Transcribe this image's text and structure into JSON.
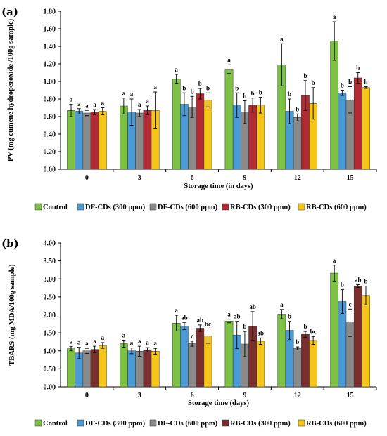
{
  "chart_data": [
    {
      "panel": "(a)",
      "type": "bar",
      "xlabel": "Storage time (in days)",
      "ylabel": "PV (mg cumene hydroperoxide /100g sample)",
      "ylim": [
        0,
        1.8
      ],
      "yticks": [
        "0.00",
        "0.20",
        "0.40",
        "0.60",
        "0.80",
        "1.00",
        "1.20",
        "1.40",
        "1.60",
        "1.80"
      ],
      "categories": [
        "0",
        "3",
        "6",
        "9",
        "12",
        "15"
      ],
      "legend_placement": "bottom",
      "series": [
        {
          "name": "Control",
          "color": "#7dc243",
          "values": [
            0.67,
            0.72,
            1.03,
            1.14,
            1.19,
            1.46
          ],
          "errors": [
            0.07,
            0.09,
            0.05,
            0.05,
            0.24,
            0.22
          ],
          "letters": [
            "a",
            "a",
            "a",
            "a",
            "a",
            "a"
          ]
        },
        {
          "name": "DF-CDs (300 ppm)",
          "color": "#4a9ad6",
          "values": [
            0.66,
            0.65,
            0.74,
            0.73,
            0.66,
            0.87
          ],
          "errors": [
            0.03,
            0.15,
            0.13,
            0.14,
            0.14,
            0.03
          ],
          "letters": [
            "a",
            "a",
            "b",
            "b",
            "b",
            "b"
          ]
        },
        {
          "name": "DF-CDs (600 ppm)",
          "color": "#8a8a8a",
          "values": [
            0.64,
            0.64,
            0.71,
            0.65,
            0.59,
            0.79
          ],
          "errors": [
            0.03,
            0.04,
            0.12,
            0.13,
            0.04,
            0.15
          ],
          "letters": [
            "a",
            "a",
            "b",
            "b",
            "b",
            "b"
          ]
        },
        {
          "name": "RB-CDs (300 ppm)",
          "color": "#b22a33",
          "values": [
            0.65,
            0.67,
            0.86,
            0.73,
            0.84,
            1.04
          ],
          "errors": [
            0.03,
            0.05,
            0.06,
            0.08,
            0.17,
            0.06
          ],
          "letters": [
            "a",
            "a",
            "b",
            "b",
            "b",
            "b"
          ]
        },
        {
          "name": "RB-CDs (600 ppm)",
          "color": "#f5c518",
          "values": [
            0.66,
            0.67,
            0.79,
            0.73,
            0.75,
            0.93
          ],
          "errors": [
            0.04,
            0.21,
            0.08,
            0.09,
            0.18,
            0.01
          ],
          "letters": [
            "a",
            "a",
            "b",
            "b",
            "b",
            "b"
          ]
        }
      ]
    },
    {
      "panel": "(b)",
      "type": "bar",
      "xlabel": "Storage time (days)",
      "ylabel": "TBARS (mg MDA/100g sample)",
      "ylim": [
        0,
        4.0
      ],
      "yticks": [
        "0.00",
        "0.50",
        "1.00",
        "1.50",
        "2.00",
        "2.50",
        "3.00",
        "3.50",
        "4.00"
      ],
      "categories": [
        "0",
        "3",
        "6",
        "9",
        "12",
        "15"
      ],
      "legend_placement": "bottom",
      "series": [
        {
          "name": "Control",
          "color": "#7dc243",
          "values": [
            1.06,
            1.2,
            1.77,
            1.83,
            2.02,
            3.16
          ],
          "errors": [
            0.06,
            0.1,
            0.22,
            0.05,
            0.13,
            0.22
          ],
          "letters": [
            "a",
            "a",
            "a",
            "a",
            "a",
            "a"
          ]
        },
        {
          "name": "DF-CDs (300 ppm)",
          "color": "#4a9ad6",
          "values": [
            0.94,
            1.0,
            1.69,
            1.44,
            1.57,
            2.37
          ],
          "errors": [
            0.16,
            0.08,
            0.1,
            0.38,
            0.25,
            0.33
          ],
          "letters": [
            "a",
            "a",
            "ab",
            "ab",
            "b",
            "b"
          ]
        },
        {
          "name": "DF-CDs (600 ppm)",
          "color": "#8a8a8a",
          "values": [
            1.0,
            0.99,
            1.2,
            1.19,
            1.07,
            1.78
          ],
          "errors": [
            0.07,
            0.14,
            0.07,
            0.35,
            0.04,
            0.38
          ],
          "letters": [
            "a",
            "a",
            "c",
            "b",
            "b",
            "c"
          ]
        },
        {
          "name": "RB-CDs (300 ppm)",
          "color": "#7a2e2e",
          "values": [
            1.04,
            1.03,
            1.63,
            1.69,
            1.46,
            2.8
          ],
          "errors": [
            0.09,
            0.06,
            0.09,
            0.4,
            0.08,
            0.04
          ],
          "letters": [
            "a",
            "a",
            "ab",
            "ab",
            "b",
            "ab"
          ]
        },
        {
          "name": "RB-CDs (600 ppm)",
          "color": "#f5c518",
          "values": [
            1.15,
            0.99,
            1.41,
            1.27,
            1.29,
            2.54
          ],
          "errors": [
            0.08,
            0.08,
            0.2,
            0.09,
            0.11,
            0.26
          ],
          "letters": [
            "a",
            "a",
            "bc",
            "ab",
            "bc",
            "b"
          ]
        }
      ]
    }
  ]
}
